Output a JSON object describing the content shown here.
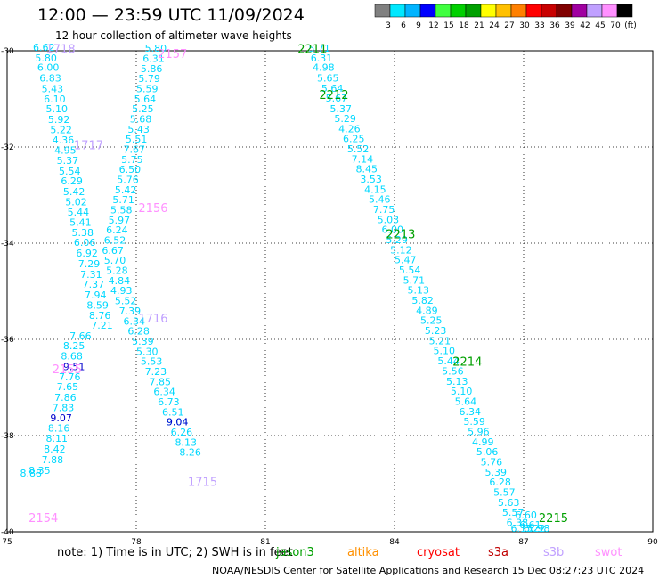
{
  "header": {
    "title": "12:00 — 23:59 UTC 11/09/2024",
    "subtitle": "12 hour collection of altimeter wave heights"
  },
  "colorbar": {
    "labels": [
      "3",
      "6",
      "9",
      "12",
      "15",
      "18",
      "21",
      "24",
      "27",
      "30",
      "33",
      "36",
      "39",
      "42",
      "45",
      "70",
      "(ft)"
    ],
    "colors": [
      "#808080",
      "#00e8ff",
      "#00b4ff",
      "#0000ff",
      "#40ff40",
      "#00d000",
      "#00a000",
      "#ffff00",
      "#ffc000",
      "#ff8000",
      "#ff0000",
      "#c80000",
      "#800000",
      "#a000a0",
      "#c0a0ff",
      "#ff90ff",
      "#000000"
    ]
  },
  "chart_data": {
    "type": "scatter",
    "xlabel": "",
    "ylabel": "",
    "xlim": [
      75,
      90
    ],
    "ylim": [
      -40,
      -30
    ],
    "x_ticks": [
      75,
      78,
      81,
      84,
      87,
      90
    ],
    "y_ticks": [
      -30,
      -32,
      -34,
      -36,
      -38,
      -40
    ],
    "grid": true,
    "series": [
      {
        "name": "jason3",
        "color": "#00d8ff",
        "points": [
          [
            75.6,
            -30.0,
            "6.62"
          ],
          [
            75.65,
            -30.22,
            "5.80"
          ],
          [
            75.7,
            -30.42,
            "6.00"
          ],
          [
            75.75,
            -30.64,
            "6.83"
          ],
          [
            75.8,
            -30.86,
            "5.43"
          ],
          [
            75.85,
            -31.07,
            "6.10"
          ],
          [
            75.9,
            -31.28,
            "5.10"
          ],
          [
            75.95,
            -31.5,
            "5.92"
          ],
          [
            76.0,
            -31.71,
            "5.22"
          ],
          [
            76.05,
            -31.93,
            "4.36"
          ],
          [
            76.1,
            -32.14,
            "4.95"
          ],
          [
            76.15,
            -32.35,
            "5.37"
          ],
          [
            76.2,
            -32.57,
            "5.54"
          ],
          [
            76.25,
            -32.78,
            "6.29"
          ],
          [
            76.3,
            -33.0,
            "5.42"
          ],
          [
            76.35,
            -33.21,
            "5.02"
          ],
          [
            76.4,
            -33.43,
            "5.44"
          ],
          [
            76.45,
            -33.64,
            "5.41"
          ],
          [
            76.5,
            -33.85,
            "5.38"
          ],
          [
            76.55,
            -34.06,
            "6.06"
          ],
          [
            76.6,
            -34.28,
            "6.92"
          ],
          [
            76.65,
            -34.5,
            "7.29"
          ],
          [
            76.7,
            -34.72,
            "7.31"
          ],
          [
            76.75,
            -34.93,
            "7.37"
          ],
          [
            76.8,
            -35.15,
            "7.94"
          ],
          [
            76.85,
            -35.36,
            "8.59"
          ],
          [
            76.9,
            -35.57,
            "8.76"
          ],
          [
            76.95,
            -35.78,
            "7.21"
          ],
          [
            76.45,
            -36.0,
            "7.66"
          ],
          [
            76.3,
            -36.2,
            "8.25"
          ],
          [
            76.25,
            -36.42,
            "8.68"
          ],
          [
            76.2,
            -36.85,
            "7.76"
          ],
          [
            76.15,
            -37.06,
            "7.65"
          ],
          [
            76.1,
            -37.28,
            "7.86"
          ],
          [
            76.05,
            -37.49,
            "7.83"
          ],
          [
            75.95,
            -37.92,
            "8.16"
          ],
          [
            75.9,
            -38.13,
            "8.11"
          ],
          [
            75.85,
            -38.35,
            "8.42"
          ],
          [
            75.8,
            -38.57,
            "7.88"
          ],
          [
            75.5,
            -38.8,
            "8.35"
          ],
          [
            75.3,
            -38.85,
            "8.88"
          ],
          [
            82.0,
            -30.02,
            "5.71"
          ],
          [
            82.05,
            -30.22,
            "6.31"
          ],
          [
            82.1,
            -30.42,
            "4.98"
          ],
          [
            82.2,
            -30.64,
            "5.65"
          ],
          [
            82.3,
            -30.85,
            "5.64"
          ],
          [
            82.4,
            -31.06,
            "5.67"
          ],
          [
            82.5,
            -31.28,
            "5.37"
          ],
          [
            82.6,
            -31.48,
            "5.29"
          ],
          [
            82.7,
            -31.69,
            "4.26"
          ],
          [
            82.8,
            -31.9,
            "6.25"
          ],
          [
            82.9,
            -32.11,
            "5.52"
          ],
          [
            83.0,
            -32.32,
            "7.14"
          ],
          [
            83.1,
            -32.53,
            "8.45"
          ],
          [
            83.2,
            -32.74,
            "3.53"
          ],
          [
            83.3,
            -32.95,
            "4.15"
          ],
          [
            83.4,
            -33.16,
            "5.46"
          ],
          [
            83.5,
            -33.37,
            "7.75"
          ],
          [
            83.6,
            -33.58,
            "5.03"
          ],
          [
            83.7,
            -33.79,
            "6.00"
          ],
          [
            83.8,
            -34.0,
            "5.29"
          ],
          [
            83.9,
            -34.21,
            "5.12"
          ],
          [
            84.0,
            -34.42,
            "5.47"
          ],
          [
            84.1,
            -34.63,
            "5.54"
          ],
          [
            84.2,
            -34.84,
            "5.71"
          ],
          [
            84.3,
            -35.05,
            "5.13"
          ],
          [
            84.4,
            -35.26,
            "5.82"
          ],
          [
            84.5,
            -35.47,
            "4.89"
          ],
          [
            84.6,
            -35.68,
            "5.25"
          ],
          [
            84.7,
            -35.89,
            "5.23"
          ],
          [
            84.8,
            -36.1,
            "5.21"
          ],
          [
            84.9,
            -36.31,
            "5.10"
          ],
          [
            85.0,
            -36.52,
            "5.44"
          ],
          [
            85.1,
            -36.73,
            "5.56"
          ],
          [
            85.2,
            -36.94,
            "5.13"
          ],
          [
            85.3,
            -37.15,
            "5.10"
          ],
          [
            85.4,
            -37.36,
            "5.64"
          ],
          [
            85.5,
            -37.57,
            "6.34"
          ],
          [
            85.6,
            -37.78,
            "5.59"
          ],
          [
            85.7,
            -37.99,
            "5.96"
          ],
          [
            85.8,
            -38.2,
            "4.99"
          ],
          [
            85.9,
            -38.41,
            "5.06"
          ],
          [
            86.0,
            -38.62,
            "5.76"
          ],
          [
            86.1,
            -38.83,
            "5.39"
          ],
          [
            86.2,
            -39.04,
            "6.28"
          ],
          [
            86.3,
            -39.25,
            "5.57"
          ],
          [
            86.4,
            -39.46,
            "5.63"
          ],
          [
            86.5,
            -39.67,
            "5.57"
          ],
          [
            86.6,
            -39.88,
            "6.38"
          ],
          [
            86.7,
            -40.0,
            "6.15"
          ]
        ]
      },
      {
        "name": "cryosat",
        "color": "#00d8ff",
        "points": [
          [
            78.2,
            -30.02,
            "5.80"
          ],
          [
            78.15,
            -30.23,
            "6.31"
          ],
          [
            78.1,
            -30.44,
            "5.86"
          ],
          [
            78.05,
            -30.65,
            "5.79"
          ],
          [
            78.0,
            -30.86,
            "5.59"
          ],
          [
            77.95,
            -31.07,
            "5.64"
          ],
          [
            77.9,
            -31.28,
            "5.25"
          ],
          [
            77.85,
            -31.49,
            "5.68"
          ],
          [
            77.8,
            -31.7,
            "5.43"
          ],
          [
            77.75,
            -31.91,
            "5.51"
          ],
          [
            77.7,
            -32.12,
            "7.67"
          ],
          [
            77.65,
            -32.33,
            "5.75"
          ],
          [
            77.6,
            -32.54,
            "6.50"
          ],
          [
            77.55,
            -32.75,
            "5.76"
          ],
          [
            77.5,
            -32.96,
            "5.42"
          ],
          [
            77.45,
            -33.17,
            "5.71"
          ],
          [
            77.4,
            -33.38,
            "5.58"
          ],
          [
            77.35,
            -33.59,
            "5.97"
          ],
          [
            77.3,
            -33.8,
            "6.24"
          ],
          [
            77.25,
            -34.01,
            "6.52"
          ],
          [
            77.2,
            -34.22,
            "6.67"
          ],
          [
            77.25,
            -34.43,
            "5.70"
          ],
          [
            77.3,
            -34.64,
            "5.28"
          ],
          [
            77.35,
            -34.85,
            "4.84"
          ],
          [
            77.4,
            -35.06,
            "4.93"
          ],
          [
            77.5,
            -35.27,
            "5.52"
          ],
          [
            77.6,
            -35.48,
            "7.39"
          ],
          [
            77.7,
            -35.69,
            "6.34"
          ],
          [
            77.8,
            -35.9,
            "6.28"
          ],
          [
            77.9,
            -36.11,
            "5.39"
          ],
          [
            78.0,
            -36.32,
            "5.30"
          ],
          [
            78.1,
            -36.53,
            "5.53"
          ],
          [
            78.2,
            -36.74,
            "7.23"
          ],
          [
            78.3,
            -36.95,
            "7.85"
          ],
          [
            78.4,
            -37.16,
            "6.34"
          ],
          [
            78.5,
            -37.37,
            "6.73"
          ],
          [
            78.6,
            -37.58,
            "6.51"
          ],
          [
            78.7,
            -37.79,
            "9.04"
          ],
          [
            78.8,
            -38.0,
            "6.26"
          ],
          [
            78.9,
            -38.21,
            "8.13"
          ],
          [
            79.0,
            -38.42,
            "8.26"
          ],
          [
            86.8,
            -39.72,
            "6.60"
          ],
          [
            86.9,
            -39.93,
            "6.61"
          ],
          [
            87.0,
            -40.0,
            "6.22"
          ],
          [
            87.1,
            -40.0,
            "5.98"
          ]
        ]
      },
      {
        "name": "s3a",
        "color": "#0000cc",
        "points": [
          [
            76.3,
            -36.64,
            "9.51"
          ],
          [
            76.0,
            -37.7,
            "9.07"
          ],
          [
            78.7,
            -37.79,
            "9.04"
          ]
        ]
      }
    ],
    "pass_labels": [
      {
        "text": "1718",
        "color": "#c0a0ff"
      },
      {
        "text": "2157",
        "color": "#ff90ff"
      },
      {
        "text": "2211",
        "color": "#00a000"
      },
      {
        "text": "2212",
        "color": "#00a000"
      },
      {
        "text": "1717",
        "color": "#c0a0ff"
      },
      {
        "text": "2156",
        "color": "#ff90ff"
      },
      {
        "text": "2213",
        "color": "#00a000"
      },
      {
        "text": "1716",
        "color": "#c0a0ff"
      },
      {
        "text": "2155",
        "color": "#ff90ff"
      },
      {
        "text": "2214",
        "color": "#00a000"
      },
      {
        "text": "1715",
        "color": "#c0a0ff"
      },
      {
        "text": "2215",
        "color": "#00a000"
      },
      {
        "text": "2154",
        "color": "#ff90ff"
      }
    ]
  },
  "footer": {
    "note": "note: 1) Time is in UTC; 2) SWH is in feet",
    "satellites": [
      {
        "name": "jason3",
        "color": "#00a000"
      },
      {
        "name": "altika",
        "color": "#ff9000"
      },
      {
        "name": "cryosat",
        "color": "#ff0000"
      },
      {
        "name": "s3a",
        "color": "#c00000"
      },
      {
        "name": "s3b",
        "color": "#c0a0ff"
      },
      {
        "name": "swot",
        "color": "#ff90ff"
      }
    ],
    "credit": "NOAA/NESDIS Center for Satellite Applications and Research     15 Dec 08:27:23 UTC 2024"
  }
}
